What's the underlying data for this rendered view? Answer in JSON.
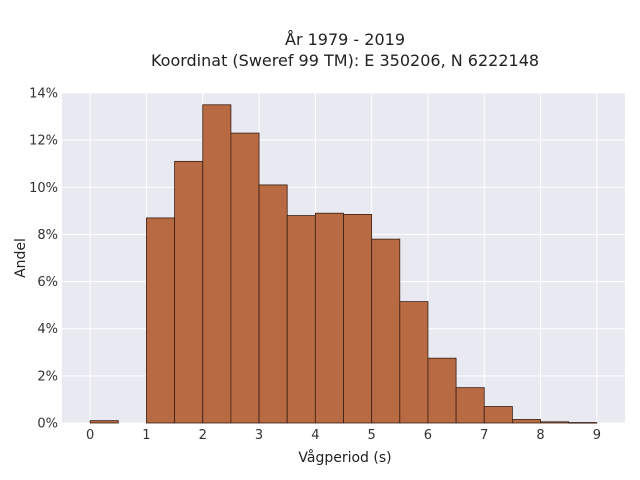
{
  "chart_data": {
    "type": "bar",
    "title_line1": "År 1979 - 2019",
    "title_line2": "Koordinat (Sweref 99 TM): E 350206, N 6222148",
    "xlabel": "Vågperiod (s)",
    "ylabel": "Andel",
    "bin_width": 0.5,
    "bins": [
      {
        "x0": 0.0,
        "value": 0.1
      },
      {
        "x0": 1.0,
        "value": 8.7
      },
      {
        "x0": 1.5,
        "value": 11.1
      },
      {
        "x0": 2.0,
        "value": 13.5
      },
      {
        "x0": 2.5,
        "value": 12.3
      },
      {
        "x0": 3.0,
        "value": 10.1
      },
      {
        "x0": 3.5,
        "value": 8.8
      },
      {
        "x0": 4.0,
        "value": 8.9
      },
      {
        "x0": 4.5,
        "value": 8.85
      },
      {
        "x0": 5.0,
        "value": 7.8
      },
      {
        "x0": 5.5,
        "value": 5.15
      },
      {
        "x0": 6.0,
        "value": 2.75
      },
      {
        "x0": 6.5,
        "value": 1.5
      },
      {
        "x0": 7.0,
        "value": 0.7
      },
      {
        "x0": 7.5,
        "value": 0.15
      },
      {
        "x0": 8.0,
        "value": 0.05
      },
      {
        "x0": 8.5,
        "value": 0.02
      }
    ],
    "xlim": [
      -0.5,
      9.5
    ],
    "ylim": [
      0,
      14
    ],
    "x_ticks": [
      0,
      1,
      2,
      3,
      4,
      5,
      6,
      7,
      8,
      9
    ],
    "y_ticks": [
      0,
      2,
      4,
      6,
      8,
      10,
      12,
      14
    ],
    "y_tick_suffix": "%",
    "grid": true,
    "bar_color": "#b86a43",
    "bar_edge_color": "#3a1f12",
    "plot_bg": "#e9e9f2"
  }
}
